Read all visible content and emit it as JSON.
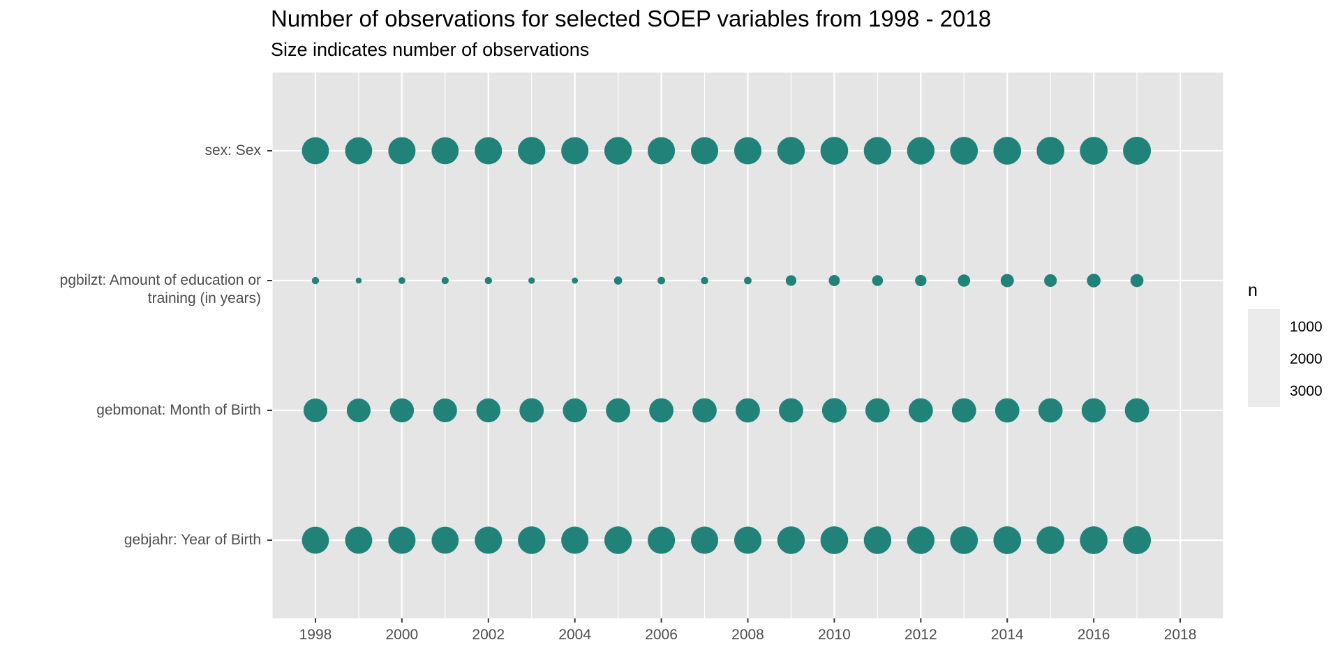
{
  "chart_data": {
    "type": "scatter",
    "title": "Number of observations for selected SOEP variables from 1998 - 2018",
    "subtitle": "Size indicates number of observations",
    "xlabel": "",
    "ylabel": "",
    "x_ticks": [
      "1998",
      "2000",
      "2002",
      "2004",
      "2006",
      "2008",
      "2010",
      "2012",
      "2014",
      "2016",
      "2018"
    ],
    "xlim": [
      1997,
      2019
    ],
    "y_categories": [
      "sex: Sex",
      "pgbilzt: Amount of education or training (in years)",
      "gebmonat: Month of Birth",
      "gebjahr: Year of Birth"
    ],
    "y_category_lines": [
      [
        "sex: Sex"
      ],
      [
        "pgbilzt: Amount of education or",
        "training (in years)"
      ],
      [
        "gebmonat: Month of Birth"
      ],
      [
        "gebjahr: Year of Birth"
      ]
    ],
    "x": [
      1998,
      1999,
      2000,
      2001,
      2002,
      2003,
      2004,
      2005,
      2006,
      2007,
      2008,
      2009,
      2010,
      2011,
      2012,
      2013,
      2014,
      2015,
      2016,
      2017
    ],
    "series": [
      {
        "name": "sex: Sex",
        "values": [
          3100,
          3100,
          3150,
          3100,
          3150,
          3200,
          3150,
          3200,
          3150,
          3150,
          3150,
          3200,
          3250,
          3200,
          3200,
          3250,
          3250,
          3250,
          3250,
          3300
        ]
      },
      {
        "name": "pgbilzt: Amount of education or training (in years)",
        "values": [
          220,
          150,
          200,
          220,
          220,
          180,
          160,
          280,
          240,
          230,
          240,
          480,
          520,
          500,
          550,
          640,
          740,
          680,
          790,
          720
        ]
      },
      {
        "name": "gebmonat: Month of Birth",
        "values": [
          2400,
          2400,
          2450,
          2400,
          2450,
          2500,
          2450,
          2500,
          2500,
          2500,
          2500,
          2500,
          2550,
          2500,
          2500,
          2500,
          2500,
          2500,
          2500,
          2500
        ]
      },
      {
        "name": "gebjahr: Year of Birth",
        "values": [
          3100,
          3100,
          3150,
          3100,
          3150,
          3200,
          3150,
          3200,
          3150,
          3150,
          3150,
          3200,
          3250,
          3200,
          3200,
          3250,
          3250,
          3250,
          3250,
          3300
        ]
      }
    ],
    "size_legend": {
      "title": "n",
      "values": [
        1000,
        2000,
        3000
      ],
      "labels": [
        "1000",
        "2000",
        "3000"
      ]
    },
    "colors": {
      "point": "#21827a",
      "panel": "#e5e5e5",
      "grid": "#ffffff",
      "legend_key": "#ebebeb"
    },
    "grid": true,
    "legend_position": "right"
  }
}
